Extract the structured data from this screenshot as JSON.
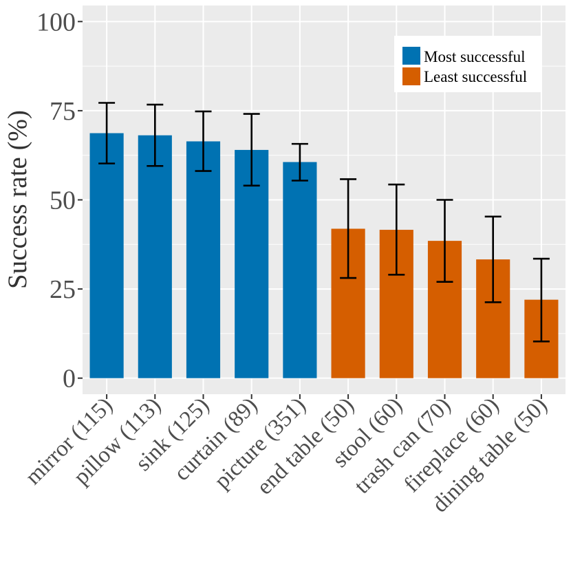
{
  "chart_data": {
    "type": "bar",
    "title": "",
    "xlabel": "",
    "ylabel": "Success rate (%)",
    "ylim": [
      -4.5,
      104.5
    ],
    "yticks": [
      0,
      25,
      50,
      75,
      100
    ],
    "grid": true,
    "legend_position": "top-right",
    "categories": [
      "mirror (115)",
      "pillow (113)",
      "sink (125)",
      "curtain (89)",
      "picture (351)",
      "end table (50)",
      "stool (60)",
      "trash can (70)",
      "fireplace (60)",
      "dining table (50)"
    ],
    "values": [
      68.7,
      68.1,
      66.4,
      64.0,
      60.6,
      41.9,
      41.6,
      38.5,
      33.3,
      22.0
    ],
    "error_low": [
      60.2,
      59.5,
      58.1,
      54.0,
      55.4,
      28.1,
      29.0,
      27.0,
      21.3,
      10.3
    ],
    "error_high": [
      77.2,
      76.7,
      74.8,
      74.1,
      65.7,
      55.8,
      54.3,
      50.0,
      45.3,
      33.5
    ],
    "groups": [
      "Most successful",
      "Most successful",
      "Most successful",
      "Most successful",
      "Most successful",
      "Least successful",
      "Least successful",
      "Least successful",
      "Least successful",
      "Least successful"
    ],
    "legend": [
      {
        "label": "Most successful",
        "color": "#0072b2"
      },
      {
        "label": "Least successful",
        "color": "#d55e00"
      }
    ]
  }
}
